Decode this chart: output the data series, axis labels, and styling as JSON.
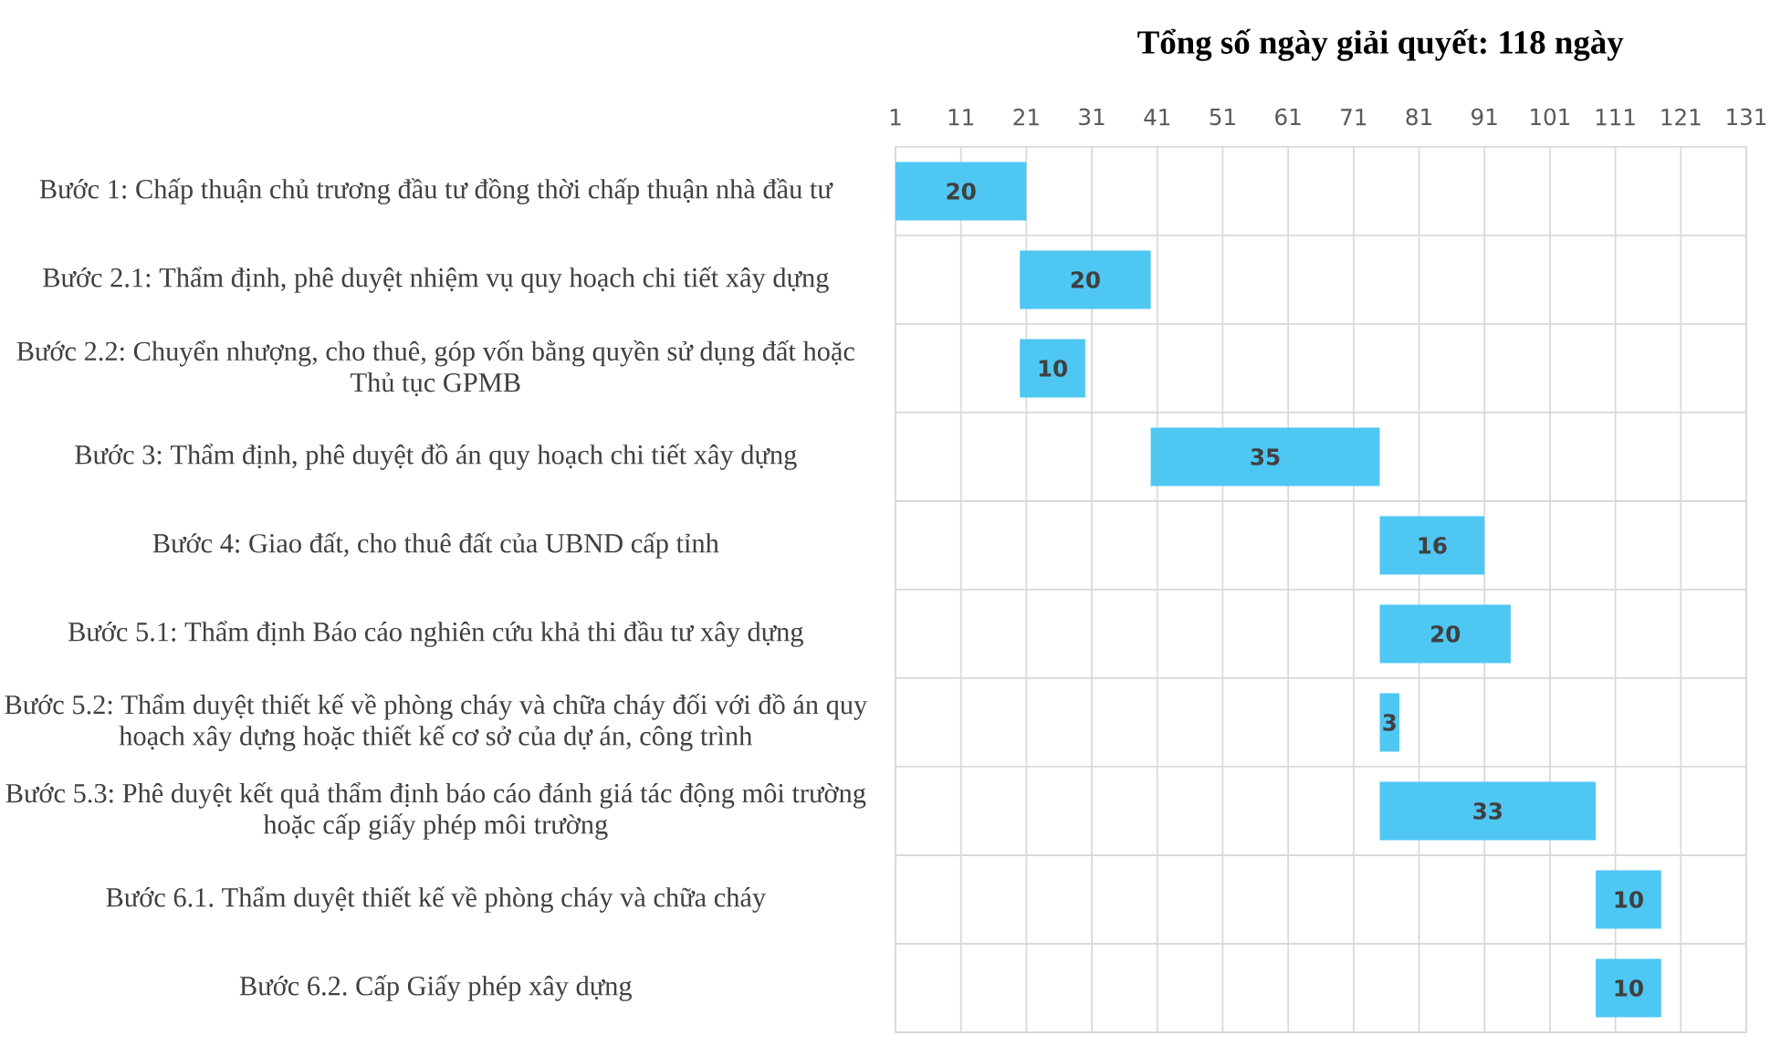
{
  "chart_data": {
    "type": "bar",
    "orientation": "horizontal",
    "title": "Tổng số ngày giải quyết: 118 ngày",
    "categories": [
      "Bước 1: Chấp thuận chủ trương đầu tư đồng thời chấp thuận nhà đầu tư",
      "Bước 2.1: Thẩm định, phê duyệt nhiệm vụ quy hoạch chi tiết xây dựng",
      "Bước 2.2: Chuyển nhượng, cho thuê, góp vốn bằng quyền sử dụng đất hoặc Thủ tục GPMB",
      "Bước 3: Thẩm định, phê duyệt đồ án quy hoạch chi tiết xây dựng",
      "Bước 4: Giao đất, cho thuê đất của UBND cấp tỉnh",
      "Bước 5.1: Thẩm định Báo cáo nghiên cứu khả thi đầu tư xây dựng",
      "Bước 5.2: Thẩm duyệt thiết kế về phòng cháy và chữa cháy đối với đồ án quy hoạch xây dựng hoặc thiết kế cơ sở của dự án, công trình",
      "Bước 5.3: Phê duyệt kết quả thẩm định báo cáo đánh giá tác động môi trường hoặc cấp giấy phép môi trường",
      "Bước 6.1. Thẩm duyệt thiết kế về phòng cháy và chữa cháy",
      "Bước 6.2. Cấp Giấy phép xây dựng"
    ],
    "values": [
      20,
      20,
      10,
      35,
      16,
      20,
      3,
      33,
      10,
      10
    ],
    "base": [
      1,
      20,
      20,
      40,
      75,
      75,
      75,
      75,
      108,
      108
    ],
    "color": "#4fc7f3",
    "data_labels": true,
    "xlim": [
      1,
      131
    ],
    "xticks": [
      1,
      11,
      21,
      31,
      41,
      51,
      61,
      71,
      81,
      91,
      101,
      111,
      121,
      131
    ],
    "grid": true
  }
}
